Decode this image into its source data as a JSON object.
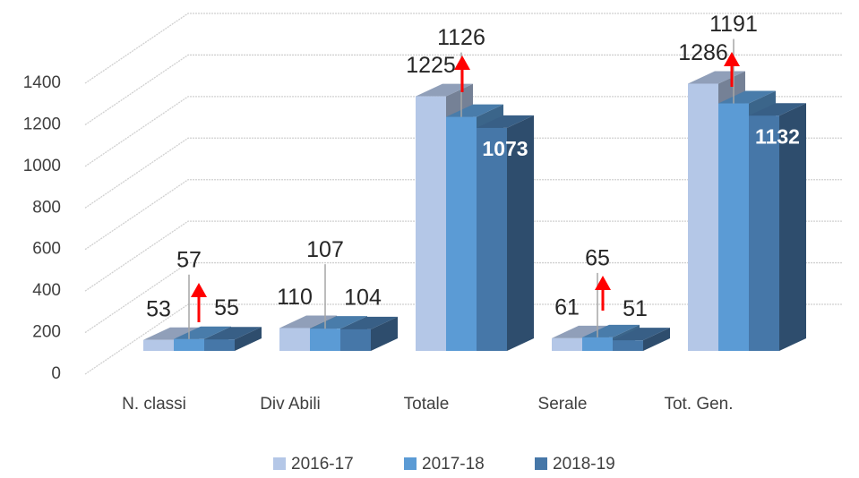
{
  "chart_data": {
    "type": "bar3d",
    "categories": [
      "N. classi",
      "Div Abili",
      "Totale",
      "Serale",
      "Tot. Gen."
    ],
    "series": [
      {
        "name": "2016-17",
        "color": "#b4c7e7",
        "values": [
          53,
          110,
          1225,
          61,
          1286
        ]
      },
      {
        "name": "2017-18",
        "color": "#5b9bd5",
        "values": [
          57,
          107,
          1126,
          65,
          1191
        ]
      },
      {
        "name": "2018-19",
        "color": "#4677a8",
        "values": [
          55,
          104,
          1073,
          51,
          1132
        ]
      }
    ],
    "ylim": [
      0,
      1400
    ],
    "yticks": [
      0,
      200,
      400,
      600,
      800,
      1000,
      1200,
      1400
    ],
    "grid": true,
    "legend": "bottom"
  }
}
